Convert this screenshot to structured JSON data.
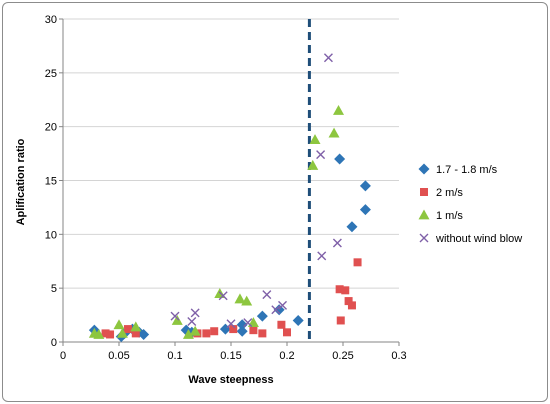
{
  "chart_data": {
    "type": "scatter",
    "title": "",
    "xlabel": "Wave steepness",
    "ylabel": "Aplification ratio",
    "xlim": [
      0,
      0.3
    ],
    "ylim": [
      0,
      30
    ],
    "x_ticks": [
      "0",
      "0.05",
      "0.1",
      "0.15",
      "0.2",
      "0.25",
      "0.3"
    ],
    "y_ticks": [
      "0",
      "5",
      "10",
      "15",
      "20",
      "25",
      "30"
    ],
    "grid": "horizontal",
    "legend_position": "right",
    "reference_line": {
      "x": 0.22,
      "style": "dashed",
      "color": "#1f4e79"
    },
    "series": [
      {
        "name": "1.7 - 1.8 m/s",
        "marker": "diamond",
        "color": "#2e75b6",
        "points": [
          [
            0.028,
            1.1
          ],
          [
            0.052,
            0.5
          ],
          [
            0.055,
            0.8
          ],
          [
            0.062,
            1.2
          ],
          [
            0.068,
            0.9
          ],
          [
            0.072,
            0.7
          ],
          [
            0.11,
            1.1
          ],
          [
            0.115,
            0.9
          ],
          [
            0.145,
            1.2
          ],
          [
            0.16,
            1.0
          ],
          [
            0.16,
            1.6
          ],
          [
            0.178,
            2.4
          ],
          [
            0.193,
            3.0
          ],
          [
            0.21,
            2.0
          ],
          [
            0.247,
            17.0
          ],
          [
            0.258,
            10.7
          ],
          [
            0.27,
            14.5
          ],
          [
            0.27,
            12.3
          ]
        ]
      },
      {
        "name": "2 m/s",
        "marker": "square",
        "color": "#e05050",
        "points": [
          [
            0.038,
            0.8
          ],
          [
            0.042,
            0.7
          ],
          [
            0.058,
            1.2
          ],
          [
            0.065,
            0.8
          ],
          [
            0.12,
            0.8
          ],
          [
            0.128,
            0.8
          ],
          [
            0.135,
            1.0
          ],
          [
            0.152,
            1.2
          ],
          [
            0.17,
            1.1
          ],
          [
            0.178,
            0.8
          ],
          [
            0.195,
            1.6
          ],
          [
            0.2,
            0.9
          ],
          [
            0.247,
            4.9
          ],
          [
            0.248,
            2.0
          ],
          [
            0.252,
            4.8
          ],
          [
            0.255,
            3.8
          ],
          [
            0.258,
            3.4
          ],
          [
            0.263,
            7.4
          ]
        ]
      },
      {
        "name": "1 m/s",
        "marker": "triangle",
        "color": "#8dc63f",
        "points": [
          [
            0.028,
            0.8
          ],
          [
            0.032,
            0.7
          ],
          [
            0.05,
            1.6
          ],
          [
            0.053,
            0.8
          ],
          [
            0.065,
            1.4
          ],
          [
            0.102,
            2.0
          ],
          [
            0.112,
            0.7
          ],
          [
            0.118,
            1.0
          ],
          [
            0.14,
            4.5
          ],
          [
            0.158,
            4.0
          ],
          [
            0.164,
            3.8
          ],
          [
            0.17,
            1.8
          ],
          [
            0.223,
            16.4
          ],
          [
            0.225,
            18.8
          ],
          [
            0.242,
            19.4
          ],
          [
            0.246,
            21.5
          ]
        ]
      },
      {
        "name": "without wind blow",
        "marker": "x",
        "color": "#7f60a8",
        "points": [
          [
            0.1,
            2.4
          ],
          [
            0.115,
            1.9
          ],
          [
            0.118,
            2.7
          ],
          [
            0.143,
            4.3
          ],
          [
            0.15,
            1.7
          ],
          [
            0.165,
            1.8
          ],
          [
            0.182,
            4.4
          ],
          [
            0.19,
            3.0
          ],
          [
            0.196,
            3.4
          ],
          [
            0.23,
            17.4
          ],
          [
            0.231,
            8.0
          ],
          [
            0.237,
            26.4
          ],
          [
            0.245,
            9.2
          ]
        ]
      }
    ]
  }
}
